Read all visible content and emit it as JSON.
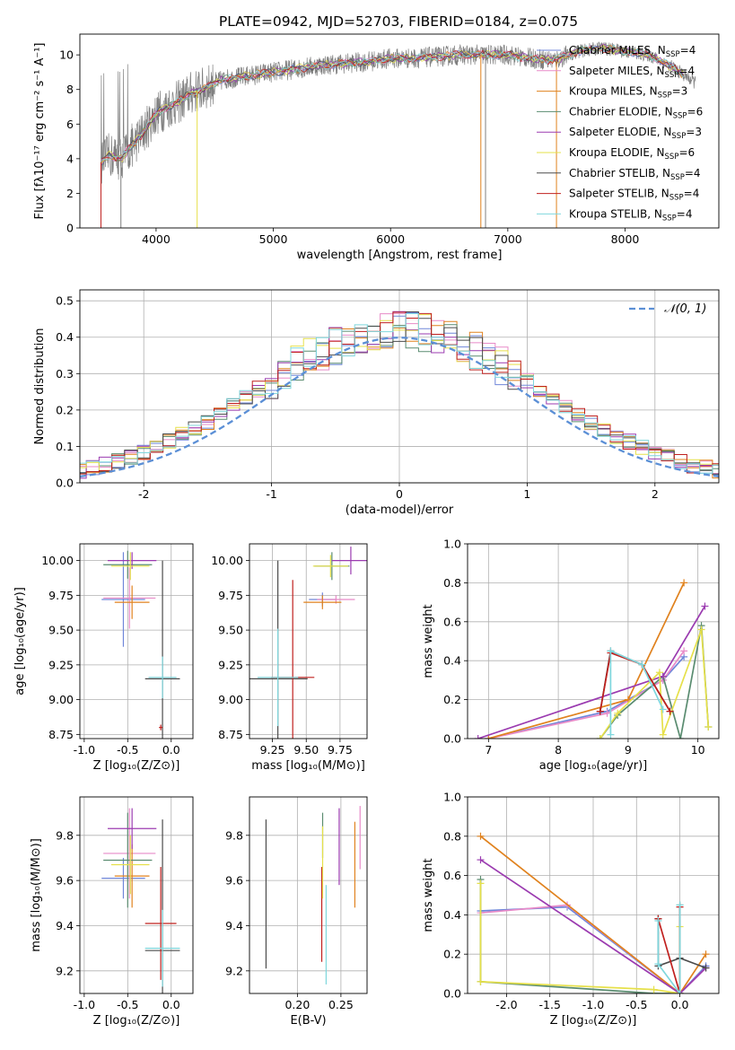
{
  "figure": {
    "title": "PLATE=0942, MJD=52703, FIBERID=0184, z=0.075"
  },
  "colors": {
    "Chabrier MILES": "#6f86d9",
    "Salpeter MILES": "#e88ac8",
    "Kroupa MILES": "#e0821e",
    "Chabrier ELODIE": "#5a8c70",
    "Salpeter ELODIE": "#9b3bb0",
    "Kroupa ELODIE": "#e6e04a",
    "Chabrier STELIB": "#4b4b4b",
    "Salpeter STELIB": "#c0201e",
    "Kroupa STELIB": "#7fd7dd",
    "observed": "#808080",
    "extra_green": "#a9d84a",
    "gaussian": "#5b8fd6"
  },
  "chart_data": [
    {
      "id": "spectrum",
      "type": "line",
      "xlabel": "wavelength [Angstrom, rest frame]",
      "ylabel": "Flux [fλ10⁻¹⁷ erg cm⁻² s⁻¹ A⁻¹]",
      "xlim": [
        3350,
        8800
      ],
      "ylim": [
        0,
        11.2
      ],
      "xticks": [
        4000,
        5000,
        6000,
        7000,
        8000
      ],
      "yticks": [
        0,
        2,
        4,
        6,
        8,
        10
      ],
      "legend_position": "right",
      "series": [
        {
          "name": "Chabrier MILES, N_SSP=4"
        },
        {
          "name": "Salpeter MILES, N_SSP=4"
        },
        {
          "name": "Kroupa MILES, N_SSP=3"
        },
        {
          "name": "Chabrier ELODIE, N_SSP=6"
        },
        {
          "name": "Salpeter ELODIE, N_SSP=3"
        },
        {
          "name": "Kroupa ELODIE, N_SSP=6"
        },
        {
          "name": "Chabrier STELIB, N_SSP=4"
        },
        {
          "name": "Salpeter STELIB, N_SSP=4"
        },
        {
          "name": "Kroupa STELIB, N_SSP=4"
        }
      ],
      "continuum": {
        "x": [
          3530,
          3600,
          3700,
          3800,
          3900,
          4000,
          4100,
          4200,
          4300,
          4400,
          4500,
          4600,
          4800,
          5000,
          5200,
          5400,
          5600,
          5800,
          6000,
          6200,
          6400,
          6600,
          6800,
          7000,
          7200,
          7400,
          7600,
          7800,
          8000,
          8200,
          8400,
          8600
        ],
        "y": [
          3.8,
          4.2,
          4.0,
          4.8,
          5.6,
          6.6,
          7.0,
          7.3,
          7.8,
          8.0,
          8.4,
          8.6,
          8.8,
          9.0,
          9.2,
          9.4,
          9.5,
          9.6,
          9.8,
          9.8,
          9.9,
          10.0,
          10.0,
          10.0,
          9.8,
          9.7,
          10.2,
          10.4,
          10.2,
          10.0,
          9.3,
          8.4
        ]
      },
      "dropouts_x": [
        3530,
        3700,
        4350,
        6770,
        6810,
        7415
      ]
    },
    {
      "id": "residuals",
      "type": "step",
      "xlabel": "(data-model)/error",
      "ylabel": "Normed distribution",
      "xlim": [
        -2.5,
        2.5
      ],
      "ylim": [
        0,
        0.53
      ],
      "xticks": [
        -2,
        -1,
        0,
        1,
        2
      ],
      "yticks": [
        0.0,
        0.1,
        0.2,
        0.3,
        0.4,
        0.5
      ],
      "legend_position": "top-right",
      "reference_label": "𝒩(0, 1)",
      "bin_width": 0.1
    },
    {
      "id": "age-vs-Z",
      "type": "errorbar",
      "xlabel": "Z [log₁₀(Z/Z⊙)]",
      "ylabel": "age  [log₁₀(age/yr)]",
      "xlim": [
        -1.05,
        0.25
      ],
      "ylim": [
        8.72,
        10.12
      ],
      "xticks": [
        -1.0,
        -0.5,
        0.0
      ],
      "yticks": [
        8.75,
        9.0,
        9.25,
        9.5,
        9.75,
        10.0
      ],
      "points": [
        {
          "model": "Chabrier MILES",
          "x": -0.55,
          "xerr": 0.25,
          "y": 9.72,
          "yerr": 0.34
        },
        {
          "model": "Salpeter MILES",
          "x": -0.48,
          "xerr": 0.3,
          "y": 9.73,
          "yerr": 0.22
        },
        {
          "model": "Kroupa MILES",
          "x": -0.45,
          "xerr": 0.2,
          "y": 9.7,
          "yerr": 0.12
        },
        {
          "model": "Chabrier ELODIE",
          "x": -0.5,
          "xerr": 0.28,
          "y": 9.97,
          "yerr": 0.1
        },
        {
          "model": "Salpeter ELODIE",
          "x": -0.45,
          "xerr": 0.28,
          "y": 10.0,
          "yerr": 0.06
        },
        {
          "model": "Kroupa ELODIE",
          "x": -0.47,
          "xerr": 0.22,
          "y": 9.96,
          "yerr": 0.1
        },
        {
          "model": "Chabrier STELIB",
          "x": -0.1,
          "xerr": 0.2,
          "y": 9.15,
          "yerr": 0.85
        },
        {
          "model": "Salpeter STELIB",
          "x": -0.12,
          "xerr": 0.02,
          "y": 8.8,
          "yerr": 0.02
        },
        {
          "model": "Kroupa STELIB",
          "x": -0.1,
          "xerr": 0.16,
          "y": 9.16,
          "yerr": 0.15
        }
      ]
    },
    {
      "id": "age-vs-mass",
      "type": "errorbar",
      "xlabel": "mass [log₁₀(M/M⊙)]",
      "ylabel": "",
      "xlim": [
        9.08,
        9.95
      ],
      "ylim": [
        8.72,
        10.12
      ],
      "xticks": [
        9.25,
        9.5,
        9.75
      ],
      "yticks": [
        8.75,
        9.0,
        9.25,
        9.5,
        9.75,
        10.0
      ],
      "points": [
        {
          "model": "Chabrier MILES",
          "x": 9.62,
          "xerr": 0.1,
          "y": 9.72,
          "yerr": 0.05
        },
        {
          "model": "Salpeter MILES",
          "x": 9.72,
          "xerr": 0.14,
          "y": 9.72,
          "yerr": 0.03
        },
        {
          "model": "Kroupa MILES",
          "x": 9.62,
          "xerr": 0.14,
          "y": 9.7,
          "yerr": 0.05
        },
        {
          "model": "Chabrier ELODIE",
          "x": 9.69,
          "xerr": 0.13,
          "y": 9.96,
          "yerr": 0.1
        },
        {
          "model": "Salpeter ELODIE",
          "x": 9.83,
          "xerr": 0.14,
          "y": 10.0,
          "yerr": 0.1
        },
        {
          "model": "Kroupa ELODIE",
          "x": 9.68,
          "xerr": 0.13,
          "y": 9.96,
          "yerr": 0.08
        },
        {
          "model": "Chabrier STELIB",
          "x": 9.29,
          "xerr": 0.22,
          "y": 9.15,
          "yerr": 0.85
        },
        {
          "model": "Salpeter STELIB",
          "x": 9.4,
          "xerr": 0.16,
          "y": 9.16,
          "yerr": 0.7
        },
        {
          "model": "Kroupa STELIB",
          "x": 9.29,
          "xerr": 0.15,
          "y": 9.16,
          "yerr": 0.35
        }
      ]
    },
    {
      "id": "weight-vs-age",
      "type": "line",
      "xlabel": "age  [log₁₀(age/yr)]",
      "ylabel": "mass weight",
      "xlim": [
        6.7,
        10.3
      ],
      "ylim": [
        0.0,
        1.0
      ],
      "xticks": [
        7,
        8,
        9,
        10
      ],
      "yticks": [
        0.0,
        0.2,
        0.4,
        0.6,
        0.8,
        1.0
      ],
      "series": [
        {
          "model": "Chabrier MILES",
          "x": [
            7.0,
            8.7,
            9.5,
            9.8
          ],
          "y": [
            0.0,
            0.14,
            0.3,
            0.42
          ]
        },
        {
          "model": "Salpeter MILES",
          "x": [
            7.0,
            8.7,
            9.5,
            9.8
          ],
          "y": [
            0.0,
            0.13,
            0.3,
            0.45
          ]
        },
        {
          "model": "Kroupa MILES",
          "x": [
            7.0,
            9.0,
            9.8
          ],
          "y": [
            0.0,
            0.2,
            0.8
          ]
        },
        {
          "model": "Chabrier ELODIE",
          "x": [
            8.6,
            8.85,
            9.5,
            9.75,
            10.05,
            10.15
          ],
          "y": [
            0.0,
            0.12,
            0.32,
            0.0,
            0.58,
            0.06
          ]
        },
        {
          "model": "Salpeter ELODIE",
          "x": [
            6.85,
            9.5,
            10.1
          ],
          "y": [
            0.0,
            0.32,
            0.68
          ]
        },
        {
          "model": "Kroupa ELODIE",
          "x": [
            8.6,
            8.85,
            9.45,
            9.5,
            10.05,
            10.15
          ],
          "y": [
            0.0,
            0.13,
            0.34,
            0.02,
            0.56,
            0.06
          ]
        },
        {
          "model": "Chabrier STELIB",
          "x": [
            8.6,
            8.75,
            9.2,
            9.6
          ],
          "y": [
            0.14,
            0.45,
            0.38,
            0.14
          ]
        },
        {
          "model": "Salpeter STELIB",
          "x": [
            8.6,
            8.75,
            9.2,
            9.6
          ],
          "y": [
            0.14,
            0.44,
            0.38,
            0.14
          ]
        },
        {
          "model": "Kroupa STELIB",
          "x": [
            8.75,
            8.75,
            9.2,
            9.5
          ],
          "y": [
            0.02,
            0.45,
            0.38,
            0.15
          ]
        }
      ]
    },
    {
      "id": "mass-vs-Z",
      "type": "errorbar",
      "xlabel": "Z [log₁₀(Z/Z⊙)]",
      "ylabel": "mass [log₁₀(M/M⊙)]",
      "xlim": [
        -1.05,
        0.25
      ],
      "ylim": [
        9.1,
        9.97
      ],
      "xticks": [
        -1.0,
        -0.5,
        0.0
      ],
      "yticks": [
        9.2,
        9.4,
        9.6,
        9.8
      ],
      "points": [
        {
          "model": "Chabrier MILES",
          "x": -0.55,
          "xerr": 0.25,
          "y": 9.61,
          "yerr": 0.09
        },
        {
          "model": "Salpeter MILES",
          "x": -0.48,
          "xerr": 0.3,
          "y": 9.72,
          "yerr": 0.2
        },
        {
          "model": "Kroupa MILES",
          "x": -0.45,
          "xerr": 0.2,
          "y": 9.62,
          "yerr": 0.14
        },
        {
          "model": "Chabrier ELODIE",
          "x": -0.5,
          "xerr": 0.28,
          "y": 9.69,
          "yerr": 0.21
        },
        {
          "model": "Salpeter ELODIE",
          "x": -0.45,
          "xerr": 0.28,
          "y": 9.83,
          "yerr": 0.09
        },
        {
          "model": "Kroupa ELODIE",
          "x": -0.47,
          "xerr": 0.22,
          "y": 9.67,
          "yerr": 0.13
        },
        {
          "model": "Chabrier STELIB",
          "x": -0.1,
          "xerr": 0.2,
          "y": 9.29,
          "yerr": 0.58
        },
        {
          "model": "Salpeter STELIB",
          "x": -0.12,
          "xerr": 0.18,
          "y": 9.41,
          "yerr": 0.25
        },
        {
          "model": "Kroupa STELIB",
          "x": -0.1,
          "xerr": 0.2,
          "y": 9.3,
          "yerr": 0.17
        }
      ]
    },
    {
      "id": "mass-vs-EBV",
      "type": "errorbar",
      "xlabel": "E(B-V)",
      "ylabel": "",
      "xlim": [
        0.145,
        0.28
      ],
      "ylim": [
        9.1,
        9.97
      ],
      "xticks": [
        0.2,
        0.25
      ],
      "yticks": [
        9.2,
        9.4,
        9.6,
        9.8
      ],
      "points": [
        {
          "model": "Chabrier STELIB",
          "x": 0.164,
          "y": 9.54,
          "yerr": 0.33
        },
        {
          "model": "Salpeter STELIB",
          "x": 0.228,
          "y": 9.45,
          "yerr": 0.21
        },
        {
          "model": "Chabrier ELODIE",
          "x": 0.229,
          "y": 9.8,
          "yerr": 0.1
        },
        {
          "model": "Kroupa ELODIE",
          "x": 0.229,
          "y": 9.68,
          "yerr": 0.16
        },
        {
          "model": "Kroupa STELIB",
          "x": 0.233,
          "y": 9.36,
          "yerr": 0.22
        },
        {
          "model": "Salpeter ELODIE",
          "x": 0.248,
          "y": 9.75,
          "yerr": 0.17
        },
        {
          "model": "Kroupa MILES",
          "x": 0.266,
          "y": 9.67,
          "yerr": 0.19
        },
        {
          "model": "Salpeter MILES",
          "x": 0.272,
          "y": 9.79,
          "yerr": 0.14
        }
      ]
    },
    {
      "id": "weight-vs-Z",
      "type": "line",
      "xlabel": "Z [log₁₀(Z/Z⊙)]",
      "ylabel": "mass weight",
      "xlim": [
        -2.45,
        0.45
      ],
      "ylim": [
        0.0,
        1.0
      ],
      "xticks": [
        -2.0,
        -1.5,
        -1.0,
        -0.5,
        0.0
      ],
      "yticks": [
        0.0,
        0.2,
        0.4,
        0.6,
        0.8,
        1.0
      ],
      "series": [
        {
          "model": "Chabrier MILES",
          "x": [
            -2.3,
            -1.3,
            0.0,
            0.3
          ],
          "y": [
            0.42,
            0.44,
            0.0,
            0.14
          ]
        },
        {
          "model": "Salpeter MILES",
          "x": [
            -2.3,
            -1.3,
            0.0,
            0.3
          ],
          "y": [
            0.41,
            0.45,
            0.0,
            0.13
          ]
        },
        {
          "model": "Kroupa MILES",
          "x": [
            -2.3,
            0.0,
            0.3
          ],
          "y": [
            0.8,
            0.0,
            0.2
          ]
        },
        {
          "model": "Chabrier ELODIE",
          "x": [
            -2.3,
            -2.3,
            -0.3,
            0.0,
            0.0
          ],
          "y": [
            0.58,
            0.06,
            0.0,
            0.0,
            0.45
          ]
        },
        {
          "model": "Salpeter ELODIE",
          "x": [
            -2.3,
            0.0,
            0.3
          ],
          "y": [
            0.68,
            0.0,
            0.13
          ]
        },
        {
          "model": "Kroupa ELODIE",
          "x": [
            -2.3,
            -2.3,
            -0.3,
            0.0,
            0.0
          ],
          "y": [
            0.56,
            0.06,
            0.02,
            0.0,
            0.34
          ]
        },
        {
          "model": "Chabrier STELIB",
          "x": [
            -0.25,
            -0.25,
            0.0,
            0.3
          ],
          "y": [
            0.38,
            0.14,
            0.18,
            0.13
          ]
        },
        {
          "model": "Salpeter STELIB",
          "x": [
            -0.25,
            0.0,
            0.0
          ],
          "y": [
            0.38,
            0.0,
            0.44
          ]
        },
        {
          "model": "Kroupa STELIB",
          "x": [
            -0.25,
            -0.25,
            0.0,
            0.0
          ],
          "y": [
            0.37,
            0.15,
            0.0,
            0.45
          ]
        }
      ]
    }
  ]
}
